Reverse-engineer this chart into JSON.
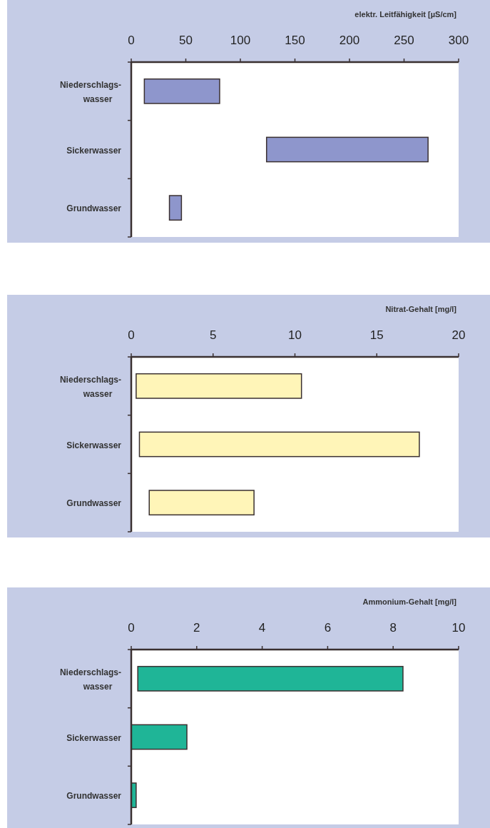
{
  "chart_data": [
    {
      "type": "bar",
      "orientation": "horizontal",
      "xlabel": "elektr. Leitfähigkeit [µS/cm]",
      "categories": [
        "Niederschlags-wasser",
        "Sickerwasser",
        "Grundwasser"
      ],
      "base": [
        12,
        124,
        35
      ],
      "values": [
        69,
        148,
        11
      ],
      "color": "#8e96cc",
      "xlim": [
        0,
        300
      ],
      "xticks": [
        0,
        50,
        100,
        150,
        200,
        250,
        300
      ]
    },
    {
      "type": "bar",
      "orientation": "horizontal",
      "xlabel": "Nitrat-Gehalt [mg/l]",
      "categories": [
        "Niederschlags-wasser",
        "Sickerwasser",
        "Grundwasser"
      ],
      "base": [
        0.3,
        0.5,
        1.1
      ],
      "values": [
        10.1,
        17.1,
        6.4
      ],
      "color": "#fff5b8",
      "xlim": [
        0,
        20
      ],
      "xticks": [
        0,
        5,
        10,
        15,
        20
      ]
    },
    {
      "type": "bar",
      "orientation": "horizontal",
      "xlabel": "Ammonium-Gehalt [mg/l]",
      "categories": [
        "Niederschlags-wasser",
        "Sickerwasser",
        "Grundwasser"
      ],
      "base": [
        0.2,
        0,
        0
      ],
      "values": [
        8.1,
        1.7,
        0.15
      ],
      "color": "#1fb597",
      "xlim": [
        0,
        10
      ],
      "xticks": [
        0,
        2,
        4,
        6,
        8,
        10
      ]
    }
  ]
}
